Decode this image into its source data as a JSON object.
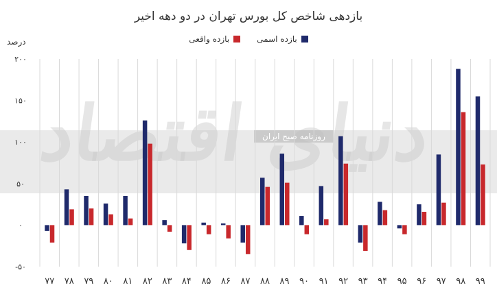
{
  "title": "بازدهی شاخص کل بورس تهران در دو دهه اخیر",
  "unit": "درصد",
  "legend": {
    "nominal_label": "بازده اسمی",
    "real_label": "بازده واقعی"
  },
  "colors": {
    "nominal": "#1f2a6b",
    "real": "#c8282c",
    "gridline": "#d9d9d9",
    "axis_text": "#333333"
  },
  "watermark": {
    "logo_text": "دنیای اقتصاد",
    "badge_text": "روزنامه صبح ایران"
  },
  "chart_data": {
    "type": "bar",
    "title": "بازدهی شاخص کل بورس تهران در دو دهه اخیر",
    "ylabel": "درصد",
    "ylim": [
      -50,
      200
    ],
    "yticks": [
      -50,
      0,
      50,
      100,
      150,
      200
    ],
    "ytick_labels": [
      "-۵۰",
      "۰",
      "۵۰",
      "۱۰۰",
      "۱۵۰",
      "۲۰۰"
    ],
    "categories": [
      "۷۷",
      "۷۸",
      "۷۹",
      "۸۰",
      "۸۱",
      "۸۲",
      "۸۳",
      "۸۴",
      "۸۵",
      "۸۶",
      "۸۷",
      "۸۸",
      "۸۹",
      "۹۰",
      "۹۱",
      "۹۲",
      "۹۳",
      "۹۴",
      "۹۵",
      "۹۶",
      "۹۷",
      "۹۸",
      "۹۹"
    ],
    "series": [
      {
        "name": "بازده اسمی",
        "color": "#1f2a6b",
        "values": [
          -7,
          43,
          35,
          26,
          35,
          126,
          6,
          -22,
          3,
          2,
          -21,
          57,
          86,
          11,
          47,
          107,
          -21,
          28,
          -4,
          25,
          85,
          188,
          155
        ]
      },
      {
        "name": "بازده واقعی",
        "color": "#c8282c",
        "values": [
          -21,
          19,
          20,
          13,
          8,
          98,
          -8,
          -30,
          -11,
          -16,
          -35,
          46,
          51,
          -11,
          7,
          74,
          -31,
          18,
          -11,
          16,
          27,
          136,
          73
        ]
      }
    ],
    "grid": true,
    "legend_position": "top-center"
  }
}
